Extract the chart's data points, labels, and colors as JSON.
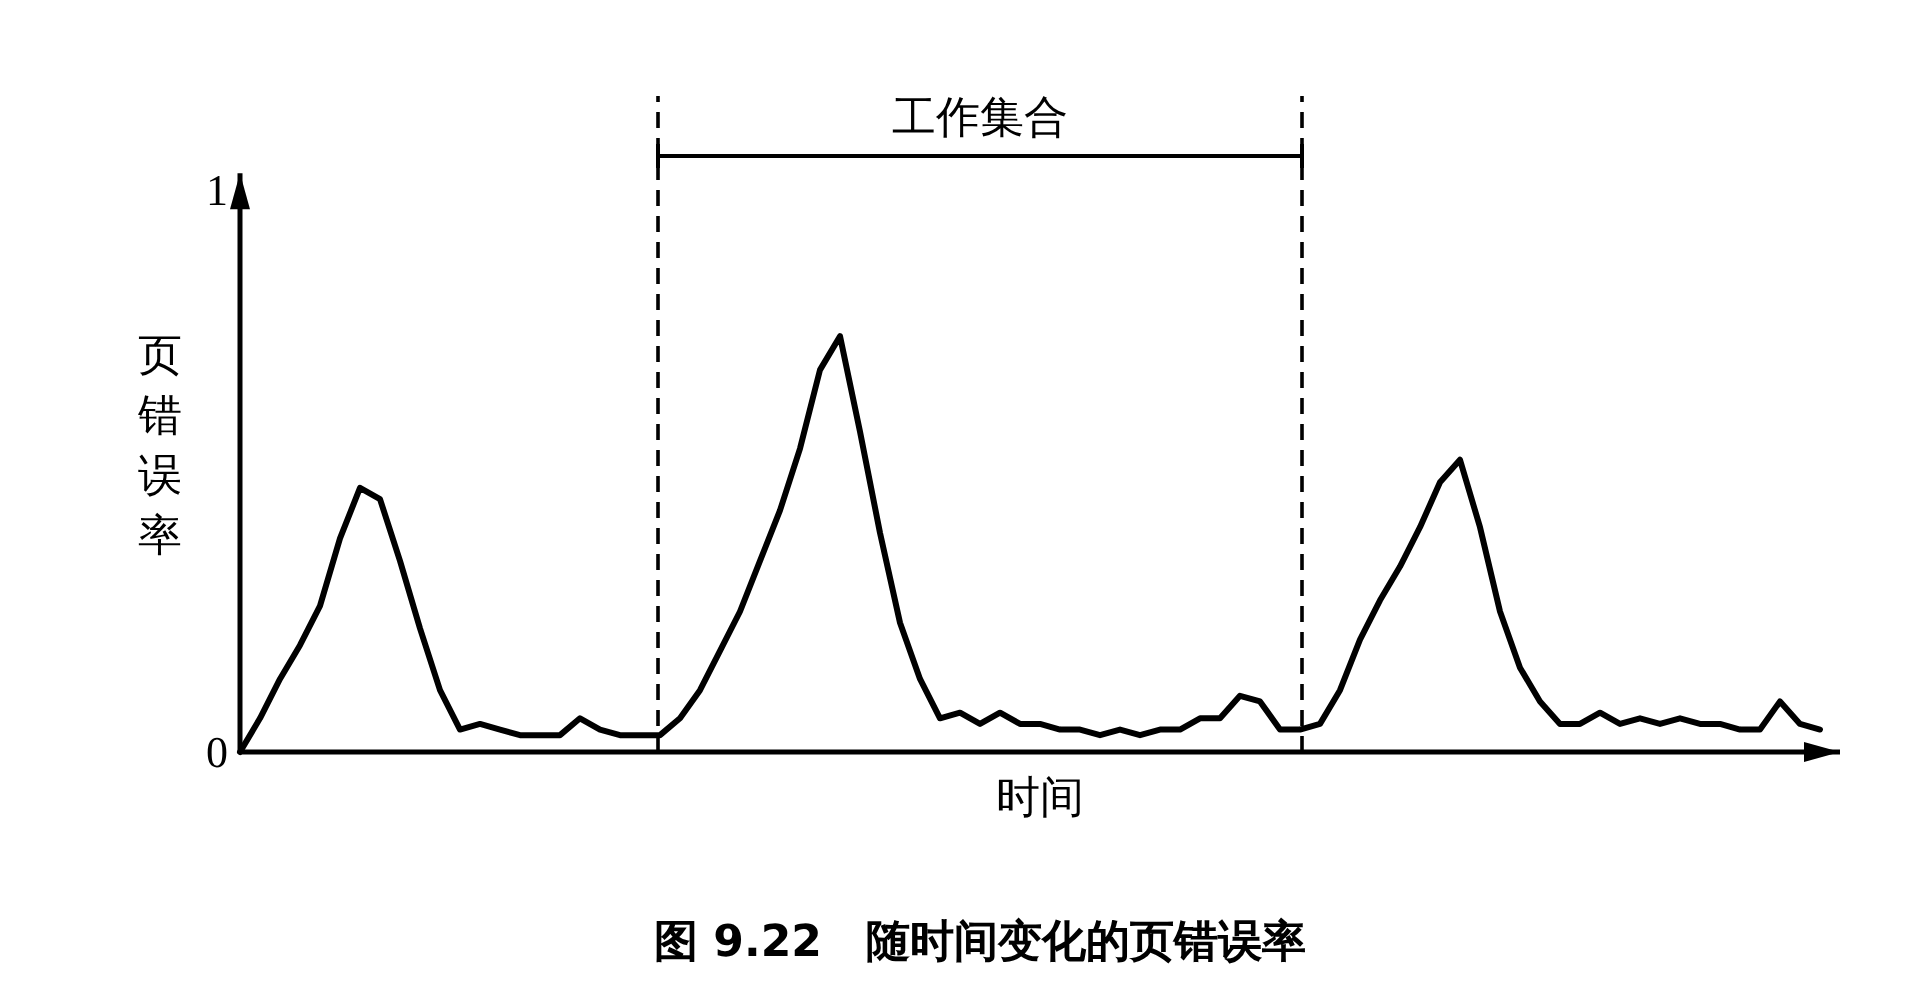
{
  "chart_data": {
    "type": "line",
    "xlabel": "时间",
    "ylabel": "页错误率",
    "annotations": [
      "工作集合",
      "图 9.22　随时间变化的页错误率"
    ],
    "categories": [
      null,
      null,
      null,
      null,
      null,
      null,
      null,
      null,
      null,
      null,
      null,
      null,
      null,
      null,
      null,
      null,
      null,
      null,
      null,
      null,
      null,
      null,
      null,
      null,
      null,
      null,
      null,
      null,
      null,
      null,
      null,
      null,
      null,
      null,
      null,
      null,
      null,
      null,
      null,
      null,
      null,
      null,
      null,
      null,
      null,
      null,
      null,
      null,
      null,
      null,
      null,
      null,
      null,
      null,
      null,
      null,
      null,
      null,
      null,
      null,
      null,
      null,
      null,
      null,
      null,
      null,
      null,
      null,
      null,
      null,
      null,
      null,
      null,
      null,
      null,
      null,
      null,
      null,
      null,
      null
    ],
    "series": [
      {
        "color": "#000000",
        "values": [
          0,
          0.06,
          0.13,
          0.19,
          0.26,
          0.38,
          0.47,
          0.45,
          0.34,
          0.22,
          0.11,
          0.04,
          0.05,
          0.04,
          0.03,
          0.03,
          0.03,
          0.06,
          0.04,
          0.03,
          0.03,
          0.03,
          0.06,
          0.11,
          0.18,
          0.25,
          0.34,
          0.43,
          0.54,
          0.68,
          0.74,
          0.57,
          0.39,
          0.23,
          0.13,
          0.06,
          0.07,
          0.05,
          0.07,
          0.05,
          0.05,
          0.04,
          0.04,
          0.03,
          0.04,
          0.03,
          0.04,
          0.04,
          0.06,
          0.06,
          0.1,
          0.09,
          0.04,
          0.04,
          0.05,
          0.11,
          0.2,
          0.27,
          0.33,
          0.4,
          0.48,
          0.52,
          0.4,
          0.25,
          0.15,
          0.09,
          0.05,
          0.05,
          0.07,
          0.05,
          0.06,
          0.05,
          0.06,
          0.05,
          0.05,
          0.04,
          0.04,
          0.09,
          0.05,
          0.04
        ]
      }
    ],
    "ylim": [
      0,
      1.03
    ],
    "yticks": [
      0,
      1
    ],
    "tick_labels": "y",
    "grid": false,
    "marker": "none",
    "line_style": "solid"
  }
}
